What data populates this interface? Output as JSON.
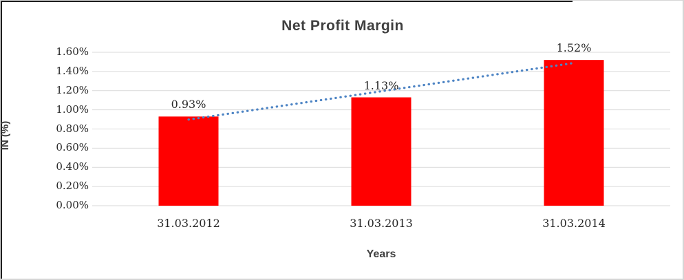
{
  "chart_data": {
    "type": "bar",
    "title": "Net Profit Margin",
    "categories": [
      "31.03.2012",
      "31.03.2013",
      "31.03.2014"
    ],
    "values": [
      0.93,
      1.13,
      1.52
    ],
    "data_labels": [
      "0.93%",
      "1.13%",
      "1.52%"
    ],
    "xlabel": "Years",
    "ylabel": "IN (%)",
    "ylim": [
      0,
      1.6
    ],
    "ytick_step": 0.2,
    "ytick_labels": [
      "0.00%",
      "0.20%",
      "0.40%",
      "0.60%",
      "0.80%",
      "1.00%",
      "1.20%",
      "1.40%",
      "1.60%"
    ],
    "grid": true,
    "legend": "none",
    "bar_color": "#ff0000",
    "gridline_color": "#d9d9d9",
    "text_color": "#262626",
    "heading_color": "#3f3f3f",
    "trendline": {
      "type": "linear",
      "style": "dotted",
      "color": "#4d84c4"
    }
  }
}
